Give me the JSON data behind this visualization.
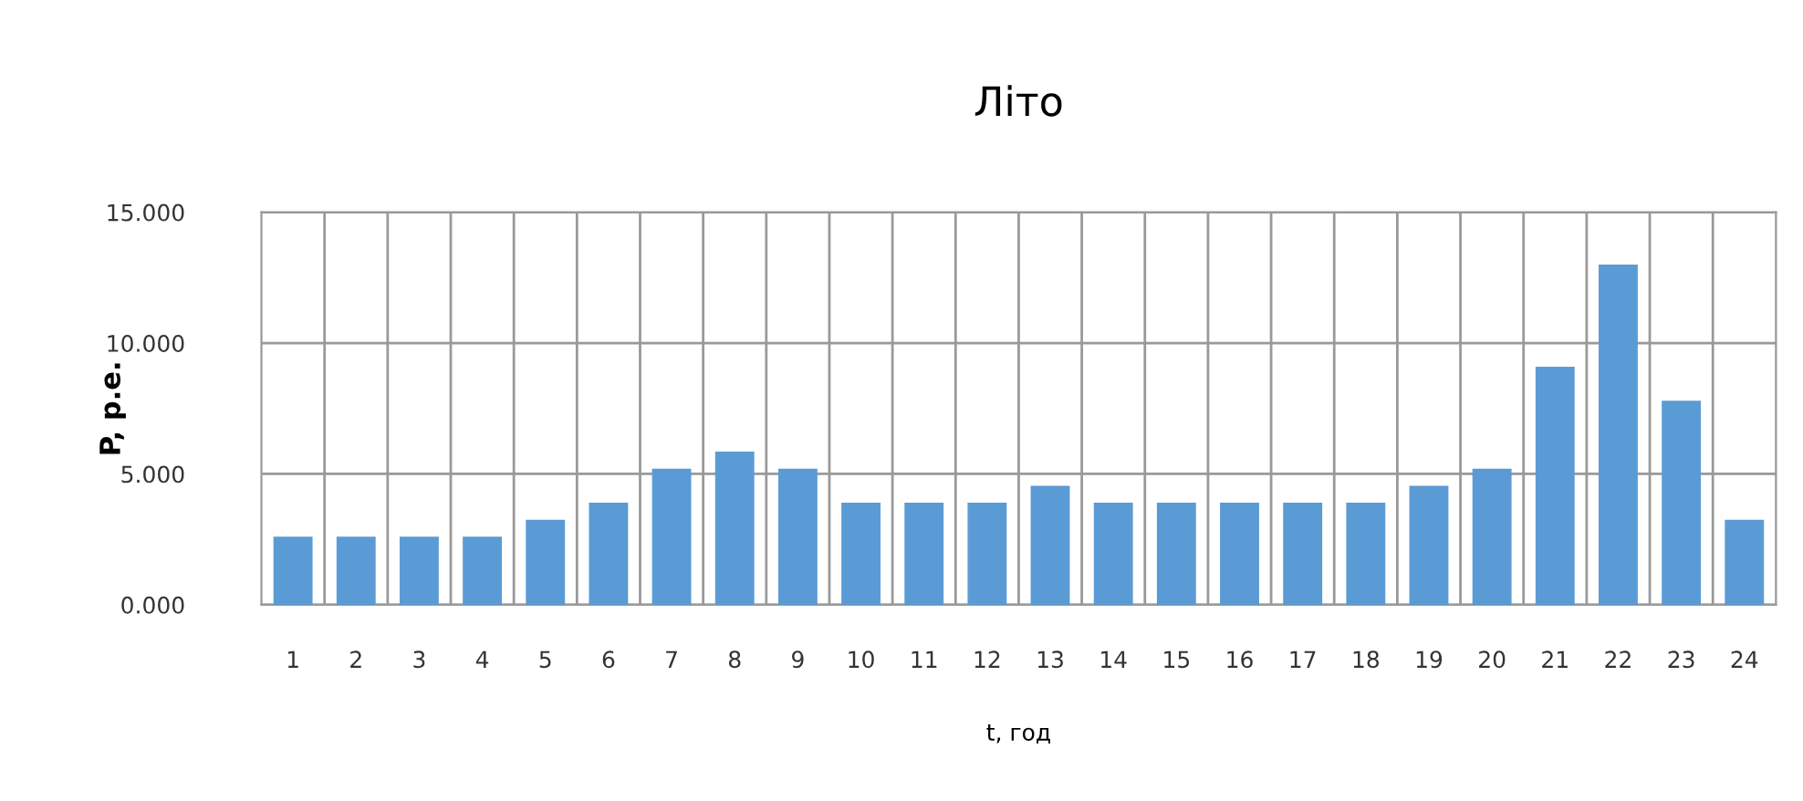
{
  "chart_data": {
    "type": "bar",
    "title": "Літо",
    "xlabel": "t, год",
    "ylabel": "P, р.е.",
    "categories": [
      "1",
      "2",
      "3",
      "4",
      "5",
      "6",
      "7",
      "8",
      "9",
      "10",
      "11",
      "12",
      "13",
      "14",
      "15",
      "16",
      "17",
      "18",
      "19",
      "20",
      "21",
      "22",
      "23",
      "24"
    ],
    "values": [
      2.6,
      2.6,
      2.6,
      2.6,
      3.25,
      3.9,
      5.2,
      5.85,
      5.2,
      3.9,
      3.9,
      3.9,
      4.55,
      3.9,
      3.9,
      3.9,
      3.9,
      3.9,
      4.55,
      5.2,
      9.1,
      13,
      7.8,
      3.25
    ],
    "color": "#5b9bd5",
    "ylim": [
      0,
      15
    ],
    "yticks": [
      {
        "value": 0,
        "label": "0.000"
      },
      {
        "value": 5,
        "label": "5.000"
      },
      {
        "value": 10,
        "label": "10.000"
      },
      {
        "value": 15,
        "label": "15.000"
      }
    ],
    "grid": true,
    "legend": false
  }
}
